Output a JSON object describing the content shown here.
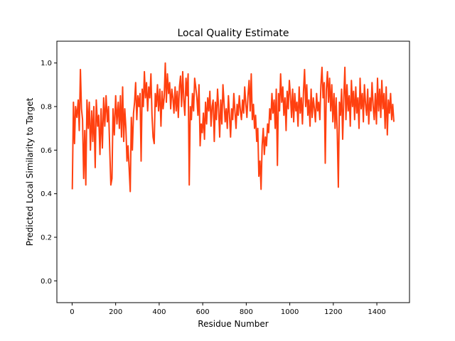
{
  "chart_data": {
    "type": "line",
    "title": "Local Quality Estimate",
    "xlabel": "Residue Number",
    "ylabel": "Predicted Local Similarity to Target",
    "xlim": [
      -70,
      1550
    ],
    "ylim": [
      -0.1,
      1.1
    ],
    "xticks": [
      0,
      200,
      400,
      600,
      800,
      1000,
      1200,
      1400
    ],
    "yticks": [
      0.0,
      0.2,
      0.4,
      0.6,
      0.8,
      1.0
    ],
    "ytick_labels": [
      "0.0",
      "0.2",
      "0.4",
      "0.6",
      "0.8",
      "1.0"
    ],
    "grid": false,
    "legend": "none",
    "series": [
      {
        "color": "#ff4010",
        "points": [
          [
            1,
            0.42
          ],
          [
            6,
            0.82
          ],
          [
            11,
            0.63
          ],
          [
            16,
            0.8
          ],
          [
            22,
            0.75
          ],
          [
            28,
            0.83
          ],
          [
            33,
            0.69
          ],
          [
            38,
            0.97
          ],
          [
            43,
            0.79
          ],
          [
            48,
            0.74
          ],
          [
            53,
            0.47
          ],
          [
            58,
            0.69
          ],
          [
            63,
            0.44
          ],
          [
            68,
            0.83
          ],
          [
            74,
            0.7
          ],
          [
            79,
            0.82
          ],
          [
            84,
            0.6
          ],
          [
            90,
            0.78
          ],
          [
            95,
            0.64
          ],
          [
            100,
            0.8
          ],
          [
            106,
            0.52
          ],
          [
            111,
            0.83
          ],
          [
            117,
            0.71
          ],
          [
            122,
            0.76
          ],
          [
            128,
            0.58
          ],
          [
            133,
            0.79
          ],
          [
            139,
            0.61
          ],
          [
            145,
            0.84
          ],
          [
            150,
            0.71
          ],
          [
            156,
            0.85
          ],
          [
            162,
            0.73
          ],
          [
            167,
            0.8
          ],
          [
            173,
            0.6
          ],
          [
            178,
            0.44
          ],
          [
            183,
            0.47
          ],
          [
            188,
            0.79
          ],
          [
            194,
            0.67
          ],
          [
            200,
            0.85
          ],
          [
            206,
            0.72
          ],
          [
            212,
            0.82
          ],
          [
            217,
            0.7
          ],
          [
            222,
            0.85
          ],
          [
            227,
            0.66
          ],
          [
            232,
            0.89
          ],
          [
            237,
            0.64
          ],
          [
            242,
            0.79
          ],
          [
            247,
            0.7
          ],
          [
            252,
            0.55
          ],
          [
            257,
            0.62
          ],
          [
            262,
            0.52
          ],
          [
            267,
            0.41
          ],
          [
            272,
            0.75
          ],
          [
            277,
            0.6
          ],
          [
            282,
            0.77
          ],
          [
            287,
            0.82
          ],
          [
            292,
            0.91
          ],
          [
            297,
            0.74
          ],
          [
            302,
            0.85
          ],
          [
            307,
            0.8
          ],
          [
            312,
            0.86
          ],
          [
            317,
            0.55
          ],
          [
            322,
            0.88
          ],
          [
            327,
            0.8
          ],
          [
            332,
            0.96
          ],
          [
            337,
            0.84
          ],
          [
            342,
            0.91
          ],
          [
            347,
            0.78
          ],
          [
            352,
            0.89
          ],
          [
            357,
            0.84
          ],
          [
            362,
            0.95
          ],
          [
            367,
            0.76
          ],
          [
            372,
            0.66
          ],
          [
            377,
            0.63
          ],
          [
            382,
            0.86
          ],
          [
            387,
            0.8
          ],
          [
            392,
            0.9
          ],
          [
            397,
            0.78
          ],
          [
            403,
            0.88
          ],
          [
            408,
            0.71
          ],
          [
            413,
            0.87
          ],
          [
            418,
            0.79
          ],
          [
            423,
            0.84
          ],
          [
            428,
            1.0
          ],
          [
            433,
            0.82
          ],
          [
            438,
            0.95
          ],
          [
            443,
            0.86
          ],
          [
            448,
            0.91
          ],
          [
            453,
            0.79
          ],
          [
            458,
            0.88
          ],
          [
            463,
            0.84
          ],
          [
            468,
            0.77
          ],
          [
            473,
            0.89
          ],
          [
            478,
            0.78
          ],
          [
            483,
            0.87
          ],
          [
            488,
            0.75
          ],
          [
            493,
            0.89
          ],
          [
            498,
            0.94
          ],
          [
            503,
            0.8
          ],
          [
            508,
            0.96
          ],
          [
            513,
            0.83
          ],
          [
            518,
            0.76
          ],
          [
            523,
            0.93
          ],
          [
            528,
            0.85
          ],
          [
            533,
            0.95
          ],
          [
            538,
            0.44
          ],
          [
            543,
            0.8
          ],
          [
            548,
            0.74
          ],
          [
            553,
            0.86
          ],
          [
            558,
            0.78
          ],
          [
            563,
            0.93
          ],
          [
            568,
            0.89
          ],
          [
            573,
            0.84
          ],
          [
            578,
            0.76
          ],
          [
            583,
            0.9
          ],
          [
            588,
            0.62
          ],
          [
            593,
            0.72
          ],
          [
            598,
            0.68
          ],
          [
            603,
            0.77
          ],
          [
            608,
            0.65
          ],
          [
            613,
            0.82
          ],
          [
            618,
            0.72
          ],
          [
            623,
            0.84
          ],
          [
            628,
            0.78
          ],
          [
            633,
            0.87
          ],
          [
            638,
            0.71
          ],
          [
            643,
            0.8
          ],
          [
            648,
            0.83
          ],
          [
            653,
            0.64
          ],
          [
            658,
            0.82
          ],
          [
            663,
            0.74
          ],
          [
            668,
            0.88
          ],
          [
            673,
            0.79
          ],
          [
            678,
            0.66
          ],
          [
            683,
            0.83
          ],
          [
            688,
            0.72
          ],
          [
            693,
            0.9
          ],
          [
            698,
            0.82
          ],
          [
            703,
            0.73
          ],
          [
            708,
            0.79
          ],
          [
            713,
            0.7
          ],
          [
            718,
            0.85
          ],
          [
            723,
            0.76
          ],
          [
            728,
            0.66
          ],
          [
            733,
            0.79
          ],
          [
            738,
            0.74
          ],
          [
            743,
            0.86
          ],
          [
            748,
            0.78
          ],
          [
            753,
            0.7
          ],
          [
            758,
            0.81
          ],
          [
            763,
            0.76
          ],
          [
            768,
            0.85
          ],
          [
            773,
            0.78
          ],
          [
            778,
            0.74
          ],
          [
            783,
            0.83
          ],
          [
            788,
            0.77
          ],
          [
            793,
            0.89
          ],
          [
            798,
            0.81
          ],
          [
            803,
            0.75
          ],
          [
            808,
            0.85
          ],
          [
            813,
            0.92
          ],
          [
            818,
            0.78
          ],
          [
            823,
            0.95
          ],
          [
            828,
            0.74
          ],
          [
            833,
            0.81
          ],
          [
            838,
            0.7
          ],
          [
            843,
            0.76
          ],
          [
            848,
            0.64
          ],
          [
            853,
            0.7
          ],
          [
            858,
            0.48
          ],
          [
            863,
            0.55
          ],
          [
            868,
            0.42
          ],
          [
            873,
            0.62
          ],
          [
            878,
            0.7
          ],
          [
            883,
            0.58
          ],
          [
            888,
            0.66
          ],
          [
            893,
            0.62
          ],
          [
            898,
            0.72
          ],
          [
            903,
            0.68
          ],
          [
            908,
            0.79
          ],
          [
            913,
            0.74
          ],
          [
            918,
            0.86
          ],
          [
            923,
            0.77
          ],
          [
            928,
            0.83
          ],
          [
            933,
            0.7
          ],
          [
            938,
            0.88
          ],
          [
            943,
            0.53
          ],
          [
            948,
            0.86
          ],
          [
            953,
            0.78
          ],
          [
            958,
            0.95
          ],
          [
            963,
            0.82
          ],
          [
            968,
            0.89
          ],
          [
            973,
            0.76
          ],
          [
            978,
            0.84
          ],
          [
            983,
            0.69
          ],
          [
            988,
            0.87
          ],
          [
            993,
            0.79
          ],
          [
            998,
            0.92
          ],
          [
            1003,
            0.85
          ],
          [
            1008,
            0.75
          ],
          [
            1013,
            0.88
          ],
          [
            1018,
            0.73
          ],
          [
            1023,
            0.86
          ],
          [
            1028,
            0.78
          ],
          [
            1033,
            0.82
          ],
          [
            1038,
            0.71
          ],
          [
            1043,
            0.89
          ],
          [
            1048,
            0.77
          ],
          [
            1053,
            0.84
          ],
          [
            1058,
            0.72
          ],
          [
            1063,
            0.87
          ],
          [
            1068,
            0.97
          ],
          [
            1073,
            0.8
          ],
          [
            1078,
            0.9
          ],
          [
            1083,
            0.76
          ],
          [
            1088,
            0.83
          ],
          [
            1093,
            0.71
          ],
          [
            1098,
            0.88
          ],
          [
            1103,
            0.75
          ],
          [
            1108,
            0.84
          ],
          [
            1113,
            0.79
          ],
          [
            1118,
            0.73
          ],
          [
            1123,
            0.86
          ],
          [
            1128,
            0.78
          ],
          [
            1133,
            0.82
          ],
          [
            1138,
            0.74
          ],
          [
            1143,
            0.9
          ],
          [
            1148,
            0.98
          ],
          [
            1153,
            0.84
          ],
          [
            1158,
            0.91
          ],
          [
            1163,
            0.54
          ],
          [
            1168,
            0.88
          ],
          [
            1173,
            0.96
          ],
          [
            1178,
            0.82
          ],
          [
            1183,
            0.93
          ],
          [
            1188,
            0.78
          ],
          [
            1193,
            0.9
          ],
          [
            1198,
            0.73
          ],
          [
            1203,
            0.86
          ],
          [
            1208,
            0.7
          ],
          [
            1213,
            0.84
          ],
          [
            1218,
            0.68
          ],
          [
            1223,
            0.43
          ],
          [
            1228,
            0.82
          ],
          [
            1233,
            0.76
          ],
          [
            1238,
            0.88
          ],
          [
            1243,
            0.65
          ],
          [
            1248,
            0.83
          ],
          [
            1253,
            0.98
          ],
          [
            1258,
            0.74
          ],
          [
            1263,
            0.9
          ],
          [
            1268,
            0.78
          ],
          [
            1273,
            0.85
          ],
          [
            1278,
            0.71
          ],
          [
            1283,
            0.92
          ],
          [
            1288,
            0.8
          ],
          [
            1293,
            0.87
          ],
          [
            1298,
            0.74
          ],
          [
            1303,
            0.89
          ],
          [
            1308,
            0.77
          ],
          [
            1313,
            0.84
          ],
          [
            1318,
            0.7
          ],
          [
            1323,
            0.93
          ],
          [
            1328,
            0.79
          ],
          [
            1333,
            0.86
          ],
          [
            1338,
            0.73
          ],
          [
            1343,
            0.9
          ],
          [
            1348,
            0.81
          ],
          [
            1353,
            0.76
          ],
          [
            1358,
            0.88
          ],
          [
            1363,
            0.72
          ],
          [
            1368,
            0.84
          ],
          [
            1373,
            0.78
          ],
          [
            1378,
            0.91
          ],
          [
            1383,
            0.8
          ],
          [
            1388,
            0.74
          ],
          [
            1393,
            0.86
          ],
          [
            1398,
            0.72
          ],
          [
            1403,
            0.93
          ],
          [
            1408,
            0.78
          ],
          [
            1413,
            0.88
          ],
          [
            1418,
            0.75
          ],
          [
            1423,
            0.92
          ],
          [
            1428,
            0.79
          ],
          [
            1433,
            0.86
          ],
          [
            1438,
            0.7
          ],
          [
            1443,
            0.89
          ],
          [
            1448,
            0.67
          ],
          [
            1453,
            0.83
          ],
          [
            1458,
            0.77
          ],
          [
            1463,
            0.86
          ],
          [
            1468,
            0.74
          ],
          [
            1473,
            0.81
          ],
          [
            1478,
            0.73
          ]
        ]
      }
    ]
  }
}
